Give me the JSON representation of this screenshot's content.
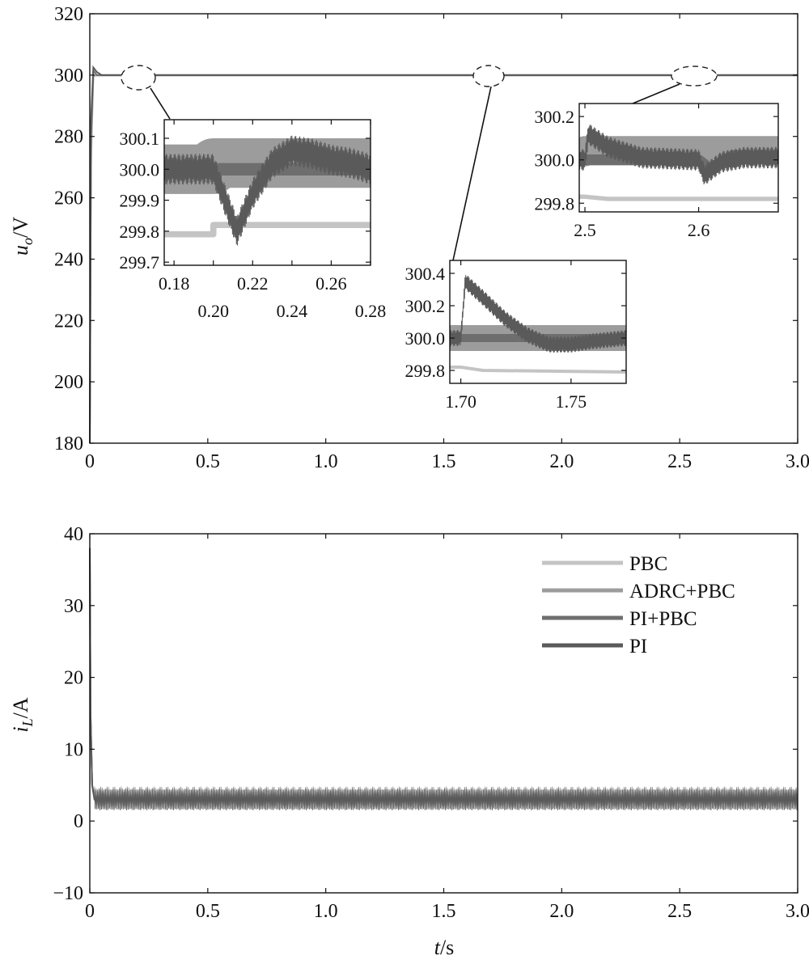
{
  "chart_data": [
    {
      "type": "line",
      "ylabel_base": "u",
      "ylabel_sub": "o",
      "ylabel_unit": "/V",
      "xlim": [
        0,
        3.0
      ],
      "ylim": [
        180,
        320
      ],
      "x_ticks": [
        "0",
        "0.5",
        "1.0",
        "1.5",
        "2.0",
        "2.5",
        "3.0"
      ],
      "y_ticks": [
        "180",
        "200",
        "220",
        "240",
        "260",
        "280",
        "300",
        "320"
      ],
      "series": [
        {
          "name": "PBC",
          "color": "#c4c4c4",
          "x": [
            0,
            0.005,
            0.015,
            0.03,
            3.0
          ],
          "y": [
            180,
            270,
            299.6,
            299.8,
            299.8
          ]
        },
        {
          "name": "ADRC+PBC",
          "color": "#9c9c9c",
          "x": [
            0,
            0.005,
            0.015,
            0.03,
            3.0
          ],
          "y": [
            180,
            275,
            300,
            300,
            300
          ]
        },
        {
          "name": "PI+PBC",
          "color": "#6e6e6e",
          "x": [
            0,
            0.005,
            0.015,
            0.03,
            3.0
          ],
          "y": [
            180,
            280,
            301.5,
            300,
            300
          ]
        },
        {
          "name": "PI",
          "color": "#5a5a5a",
          "x": [
            0,
            0.005,
            0.015,
            0.03,
            0.05,
            3.0
          ],
          "y": [
            180,
            285,
            302.5,
            301,
            300,
            300
          ]
        }
      ],
      "insets": [
        {
          "xlim": [
            0.175,
            0.28
          ],
          "ylim": [
            299.69,
            300.16
          ],
          "x_ticks_top": [
            "0.18",
            "0.22",
            "0.26"
          ],
          "x_ticks_bottom": [
            "0.20",
            "0.24",
            "0.28"
          ],
          "y_ticks": [
            "300.1",
            "300.0",
            "299.9",
            "299.8",
            "299.7"
          ],
          "series": [
            {
              "name": "PBC",
              "x": [
                0.175,
                0.2,
                0.2,
                0.28
              ],
              "y": [
                299.79,
                299.79,
                299.82,
                299.82
              ],
              "band": 0.02
            },
            {
              "name": "ADRC+PBC",
              "x": [
                0.175,
                0.2,
                0.2,
                0.28
              ],
              "y": [
                300.0,
                300.0,
                300.02,
                300.02
              ],
              "band": 0.16
            },
            {
              "name": "PI+PBC",
              "x": [
                0.175,
                0.2,
                0.2,
                0.28
              ],
              "y": [
                300.0,
                300.0,
                300.0,
                300.0
              ],
              "band": 0.04
            },
            {
              "name": "PI",
              "x": [
                0.175,
                0.2,
                0.206,
                0.212,
                0.22,
                0.23,
                0.24,
                0.25,
                0.26,
                0.27,
                0.28
              ],
              "y": [
                300.0,
                300.0,
                299.9,
                299.8,
                299.92,
                300.02,
                300.06,
                300.05,
                300.03,
                300.02,
                300.0
              ],
              "band": 0.1
            }
          ]
        },
        {
          "xlim": [
            1.695,
            1.775
          ],
          "ylim": [
            299.72,
            300.48
          ],
          "x_ticks_bottom": [
            "1.70",
            "1.75"
          ],
          "y_ticks": [
            "300.4",
            "300.2",
            "300.0",
            "299.8"
          ],
          "series": [
            {
              "name": "PBC",
              "x": [
                1.695,
                1.7,
                1.71,
                1.775
              ],
              "y": [
                299.82,
                299.82,
                299.8,
                299.79
              ],
              "band": 0.02
            },
            {
              "name": "ADRC+PBC",
              "x": [
                1.695,
                1.7,
                1.71,
                1.775
              ],
              "y": [
                300.0,
                300.0,
                300.0,
                300.0
              ],
              "band": 0.16
            },
            {
              "name": "PI+PBC",
              "x": [
                1.695,
                1.7,
                1.71,
                1.775
              ],
              "y": [
                300.0,
                300.0,
                300.0,
                300.0
              ],
              "band": 0.05
            },
            {
              "name": "PI",
              "x": [
                1.695,
                1.7,
                1.702,
                1.71,
                1.72,
                1.73,
                1.74,
                1.75,
                1.76,
                1.775
              ],
              "y": [
                300.0,
                300.0,
                300.35,
                300.25,
                300.12,
                300.02,
                299.96,
                299.96,
                299.98,
                300.0
              ],
              "band": 0.1
            }
          ]
        },
        {
          "xlim": [
            2.495,
            2.67
          ],
          "ylim": [
            299.76,
            300.26
          ],
          "x_ticks_bottom": [
            "2.5",
            "2.6"
          ],
          "y_ticks": [
            "300.2",
            "300.0",
            "299.8"
          ],
          "series": [
            {
              "name": "PBC",
              "x": [
                2.495,
                2.5,
                2.52,
                2.67
              ],
              "y": [
                299.83,
                299.83,
                299.82,
                299.82
              ],
              "band": 0.02
            },
            {
              "name": "ADRC+PBC",
              "x": [
                2.495,
                2.5,
                2.5,
                2.67
              ],
              "y": [
                300.03,
                300.03,
                300.05,
                300.05
              ],
              "band": 0.12
            },
            {
              "name": "PI+PBC",
              "x": [
                2.495,
                2.5,
                2.6,
                2.61,
                2.63,
                2.67
              ],
              "y": [
                300.0,
                300.0,
                300.0,
                299.96,
                300.02,
                300.02
              ],
              "band": 0.05
            },
            {
              "name": "PI",
              "x": [
                2.495,
                2.5,
                2.503,
                2.52,
                2.55,
                2.6,
                2.605,
                2.62,
                2.64,
                2.67
              ],
              "y": [
                300.0,
                300.0,
                300.12,
                300.06,
                300.01,
                300.0,
                299.93,
                299.99,
                300.01,
                300.01
              ],
              "band": 0.1
            }
          ]
        }
      ]
    },
    {
      "type": "line",
      "xlabel_var": "t",
      "xlabel_unit": "/s",
      "ylabel_base": "i",
      "ylabel_sub": "L",
      "ylabel_unit": "/A",
      "xlim": [
        0,
        3.0
      ],
      "ylim": [
        -10,
        40
      ],
      "x_ticks": [
        "0",
        "0.5",
        "1.0",
        "1.5",
        "2.0",
        "2.5",
        "3.0"
      ],
      "y_ticks": [
        "−10",
        "0",
        "10",
        "20",
        "30",
        "40"
      ],
      "legend": [
        "PBC",
        "ADRC+PBC",
        "PI+PBC",
        "PI"
      ],
      "legend_position": "top-right",
      "series": [
        {
          "name": "PBC",
          "color": "#c4c4c4",
          "x": [
            0,
            0.003,
            0.01,
            0.02,
            3.0
          ],
          "y": [
            38,
            15,
            5,
            3,
            3
          ],
          "band": 2.6
        },
        {
          "name": "ADRC+PBC",
          "color": "#9c9c9c",
          "x": [
            0,
            0.003,
            0.01,
            0.02,
            3.0
          ],
          "y": [
            38,
            15,
            5,
            3.2,
            3.2
          ],
          "band": 3.2
        },
        {
          "name": "PI+PBC",
          "color": "#6e6e6e",
          "x": [
            0,
            0.003,
            0.01,
            0.02,
            3.0
          ],
          "y": [
            38,
            15,
            5,
            3,
            3
          ],
          "band": 2.8
        },
        {
          "name": "PI",
          "color": "#5a5a5a",
          "x": [
            0,
            0.003,
            0.01,
            0.02,
            3.0
          ],
          "y": [
            38,
            15,
            5,
            3,
            3
          ],
          "band": 3.0
        }
      ]
    }
  ]
}
